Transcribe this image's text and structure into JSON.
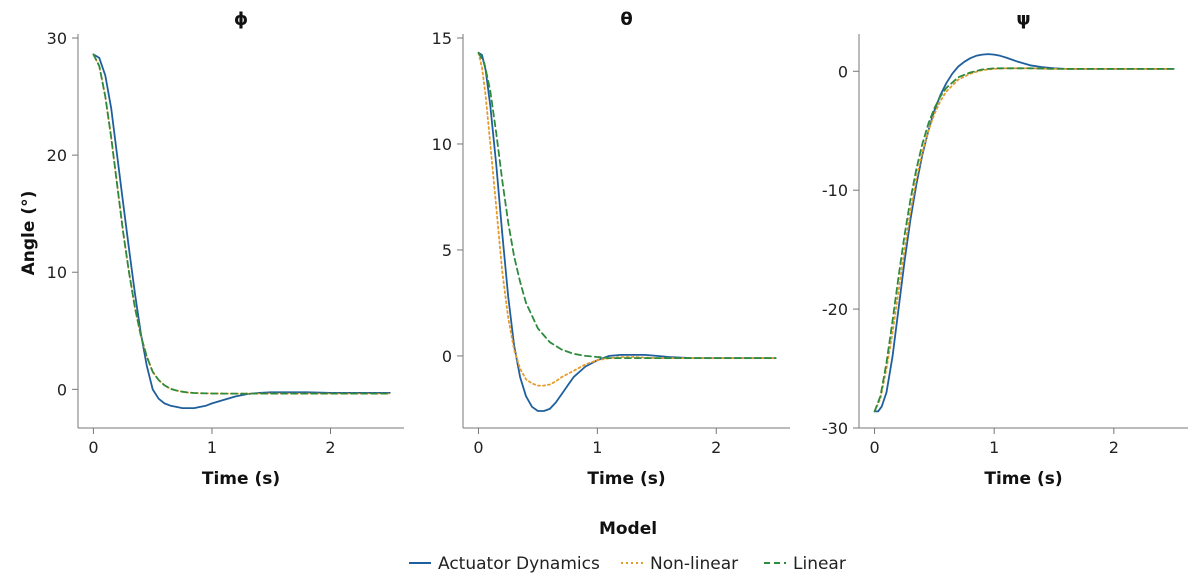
{
  "chart_data": [
    {
      "type": "line",
      "title": "ϕ",
      "xlabel": "Time (s)",
      "ylabel": "Angle (°)",
      "xlim": [
        -0.13,
        2.62
      ],
      "ylim": [
        -3.3,
        30.0
      ],
      "xticks": [
        0,
        1,
        2
      ],
      "xtick_labels": [
        "0",
        "1",
        "2"
      ],
      "yticks": [
        0,
        10,
        20,
        30
      ],
      "ytick_labels": [
        "0",
        "10",
        "20",
        "30"
      ],
      "series": [
        {
          "name": "Actuator Dynamics",
          "x": [
            0,
            0.05,
            0.1,
            0.15,
            0.2,
            0.25,
            0.3,
            0.35,
            0.4,
            0.45,
            0.5,
            0.55,
            0.6,
            0.65,
            0.7,
            0.75,
            0.8,
            0.85,
            0.9,
            0.95,
            1.0,
            1.1,
            1.2,
            1.3,
            1.4,
            1.5,
            1.6,
            1.7,
            1.8,
            2.0,
            2.2,
            2.5
          ],
          "y": [
            28.6,
            28.3,
            26.8,
            24.0,
            20.0,
            16.0,
            12.0,
            8.2,
            4.8,
            2.0,
            0.0,
            -0.8,
            -1.2,
            -1.4,
            -1.5,
            -1.6,
            -1.6,
            -1.6,
            -1.5,
            -1.4,
            -1.2,
            -0.9,
            -0.6,
            -0.4,
            -0.3,
            -0.25,
            -0.25,
            -0.25,
            -0.25,
            -0.3,
            -0.3,
            -0.3
          ]
        },
        {
          "name": "Non-linear",
          "x": [
            0,
            0.05,
            0.1,
            0.15,
            0.2,
            0.25,
            0.3,
            0.35,
            0.4,
            0.45,
            0.5,
            0.55,
            0.6,
            0.65,
            0.7,
            0.75,
            0.8,
            0.85,
            0.9,
            1.0,
            1.1,
            1.2,
            1.3,
            1.5,
            2.0,
            2.5
          ],
          "y": [
            28.6,
            27.6,
            25.0,
            21.5,
            17.5,
            13.5,
            10.0,
            7.0,
            4.6,
            2.8,
            1.5,
            0.8,
            0.35,
            0.05,
            -0.1,
            -0.2,
            -0.27,
            -0.31,
            -0.33,
            -0.35,
            -0.36,
            -0.36,
            -0.36,
            -0.36,
            -0.36,
            -0.36
          ]
        },
        {
          "name": "Linear",
          "x": [
            0,
            0.05,
            0.1,
            0.15,
            0.2,
            0.25,
            0.3,
            0.35,
            0.4,
            0.45,
            0.5,
            0.55,
            0.6,
            0.65,
            0.7,
            0.75,
            0.8,
            0.85,
            0.9,
            1.0,
            1.1,
            1.2,
            1.3,
            1.5,
            2.0,
            2.5
          ],
          "y": [
            28.6,
            27.6,
            25.0,
            21.5,
            17.5,
            13.5,
            10.0,
            7.0,
            4.6,
            2.8,
            1.5,
            0.8,
            0.35,
            0.05,
            -0.1,
            -0.2,
            -0.27,
            -0.31,
            -0.33,
            -0.35,
            -0.36,
            -0.36,
            -0.36,
            -0.36,
            -0.36,
            -0.36
          ]
        }
      ]
    },
    {
      "type": "line",
      "title": "θ",
      "xlabel": "Time (s)",
      "ylabel": "",
      "xlim": [
        -0.13,
        2.62
      ],
      "ylim": [
        -3.4,
        15.0
      ],
      "xticks": [
        0,
        1,
        2
      ],
      "xtick_labels": [
        "0",
        "1",
        "2"
      ],
      "yticks": [
        0,
        5,
        10,
        15
      ],
      "ytick_labels": [
        "0",
        "5",
        "10",
        "15"
      ],
      "series": [
        {
          "name": "Actuator Dynamics",
          "x": [
            0,
            0.03,
            0.06,
            0.1,
            0.15,
            0.2,
            0.25,
            0.3,
            0.35,
            0.4,
            0.45,
            0.5,
            0.55,
            0.6,
            0.65,
            0.7,
            0.75,
            0.8,
            0.9,
            1.0,
            1.1,
            1.2,
            1.3,
            1.4,
            1.5,
            1.6,
            1.8,
            2.0,
            2.5
          ],
          "y": [
            14.3,
            14.2,
            13.5,
            11.8,
            9.0,
            5.8,
            2.8,
            0.5,
            -1.0,
            -1.9,
            -2.4,
            -2.6,
            -2.6,
            -2.5,
            -2.2,
            -1.8,
            -1.4,
            -1.0,
            -0.5,
            -0.2,
            0.0,
            0.05,
            0.05,
            0.05,
            0.0,
            -0.05,
            -0.1,
            -0.1,
            -0.1
          ]
        },
        {
          "name": "Non-linear",
          "x": [
            0,
            0.03,
            0.06,
            0.1,
            0.15,
            0.2,
            0.25,
            0.3,
            0.35,
            0.4,
            0.45,
            0.5,
            0.55,
            0.6,
            0.65,
            0.7,
            0.8,
            0.9,
            1.0,
            1.1,
            1.2,
            1.3,
            1.5,
            2.0,
            2.5
          ],
          "y": [
            14.3,
            13.6,
            12.3,
            10.0,
            7.0,
            4.0,
            1.8,
            0.3,
            -0.6,
            -1.1,
            -1.3,
            -1.4,
            -1.4,
            -1.35,
            -1.2,
            -1.0,
            -0.7,
            -0.4,
            -0.2,
            -0.1,
            -0.05,
            -0.05,
            -0.1,
            -0.1,
            -0.1
          ]
        },
        {
          "name": "Linear",
          "x": [
            0,
            0.05,
            0.1,
            0.15,
            0.2,
            0.25,
            0.3,
            0.35,
            0.4,
            0.5,
            0.6,
            0.7,
            0.8,
            0.9,
            1.0,
            1.1,
            1.2,
            1.4,
            1.6,
            2.0,
            2.5
          ],
          "y": [
            14.3,
            13.8,
            12.5,
            10.5,
            8.3,
            6.3,
            4.7,
            3.5,
            2.5,
            1.3,
            0.65,
            0.3,
            0.1,
            0.0,
            -0.05,
            -0.1,
            -0.1,
            -0.1,
            -0.1,
            -0.1,
            -0.1
          ]
        }
      ]
    },
    {
      "type": "line",
      "title": "ψ",
      "xlabel": "Time (s)",
      "ylabel": "",
      "xlim": [
        -0.13,
        2.62
      ],
      "ylim": [
        -30.0,
        2.8
      ],
      "xticks": [
        0,
        1,
        2
      ],
      "xtick_labels": [
        "0",
        "1",
        "2"
      ],
      "yticks": [
        -30,
        -20,
        -10,
        0
      ],
      "ytick_labels": [
        "-30",
        "-20",
        "-10",
        "0"
      ],
      "series": [
        {
          "name": "Actuator Dynamics",
          "x": [
            0,
            0.03,
            0.06,
            0.1,
            0.15,
            0.2,
            0.25,
            0.3,
            0.35,
            0.4,
            0.45,
            0.5,
            0.55,
            0.6,
            0.65,
            0.7,
            0.75,
            0.8,
            0.85,
            0.9,
            0.95,
            1.0,
            1.05,
            1.1,
            1.2,
            1.3,
            1.4,
            1.5,
            1.6,
            1.8,
            2.0,
            2.5
          ],
          "y": [
            -28.6,
            -28.6,
            -28.2,
            -27.0,
            -24.0,
            -20.0,
            -16.0,
            -12.5,
            -9.5,
            -7.0,
            -5.0,
            -3.3,
            -2.0,
            -1.0,
            -0.2,
            0.4,
            0.8,
            1.1,
            1.3,
            1.4,
            1.45,
            1.4,
            1.3,
            1.15,
            0.8,
            0.5,
            0.35,
            0.25,
            0.2,
            0.2,
            0.2,
            0.2
          ]
        },
        {
          "name": "Non-linear",
          "x": [
            0,
            0.05,
            0.1,
            0.15,
            0.2,
            0.25,
            0.3,
            0.35,
            0.4,
            0.45,
            0.5,
            0.55,
            0.6,
            0.7,
            0.8,
            0.9,
            1.0,
            1.1,
            1.2,
            1.3,
            1.5,
            2.0,
            2.5
          ],
          "y": [
            -28.6,
            -27.5,
            -25.0,
            -22.0,
            -18.5,
            -15.0,
            -11.8,
            -9.0,
            -6.8,
            -5.0,
            -3.6,
            -2.5,
            -1.7,
            -0.7,
            -0.2,
            0.1,
            0.2,
            0.25,
            0.25,
            0.25,
            0.2,
            0.2,
            0.2
          ]
        },
        {
          "name": "Linear",
          "x": [
            0,
            0.05,
            0.1,
            0.15,
            0.2,
            0.25,
            0.3,
            0.35,
            0.4,
            0.45,
            0.5,
            0.55,
            0.6,
            0.7,
            0.8,
            0.9,
            1.0,
            1.1,
            1.2,
            1.3,
            1.5,
            2.0,
            2.5
          ],
          "y": [
            -28.6,
            -27.3,
            -24.5,
            -21.0,
            -17.3,
            -13.8,
            -10.8,
            -8.2,
            -6.1,
            -4.4,
            -3.1,
            -2.1,
            -1.4,
            -0.5,
            -0.1,
            0.15,
            0.25,
            0.25,
            0.25,
            0.25,
            0.2,
            0.2,
            0.2
          ]
        }
      ]
    }
  ],
  "legend": {
    "title": "Model",
    "entries": [
      {
        "name": "Actuator Dynamics",
        "color": "#1f5f9e",
        "style": "solid"
      },
      {
        "name": "Non-linear",
        "color": "#e69a2a",
        "style": "dotted"
      },
      {
        "name": "Linear",
        "color": "#2e8b3e",
        "style": "dashed"
      }
    ]
  },
  "colors": {
    "Actuator Dynamics": "#1f5f9e",
    "Non-linear": "#e69a2a",
    "Linear": "#2e8b3e"
  }
}
